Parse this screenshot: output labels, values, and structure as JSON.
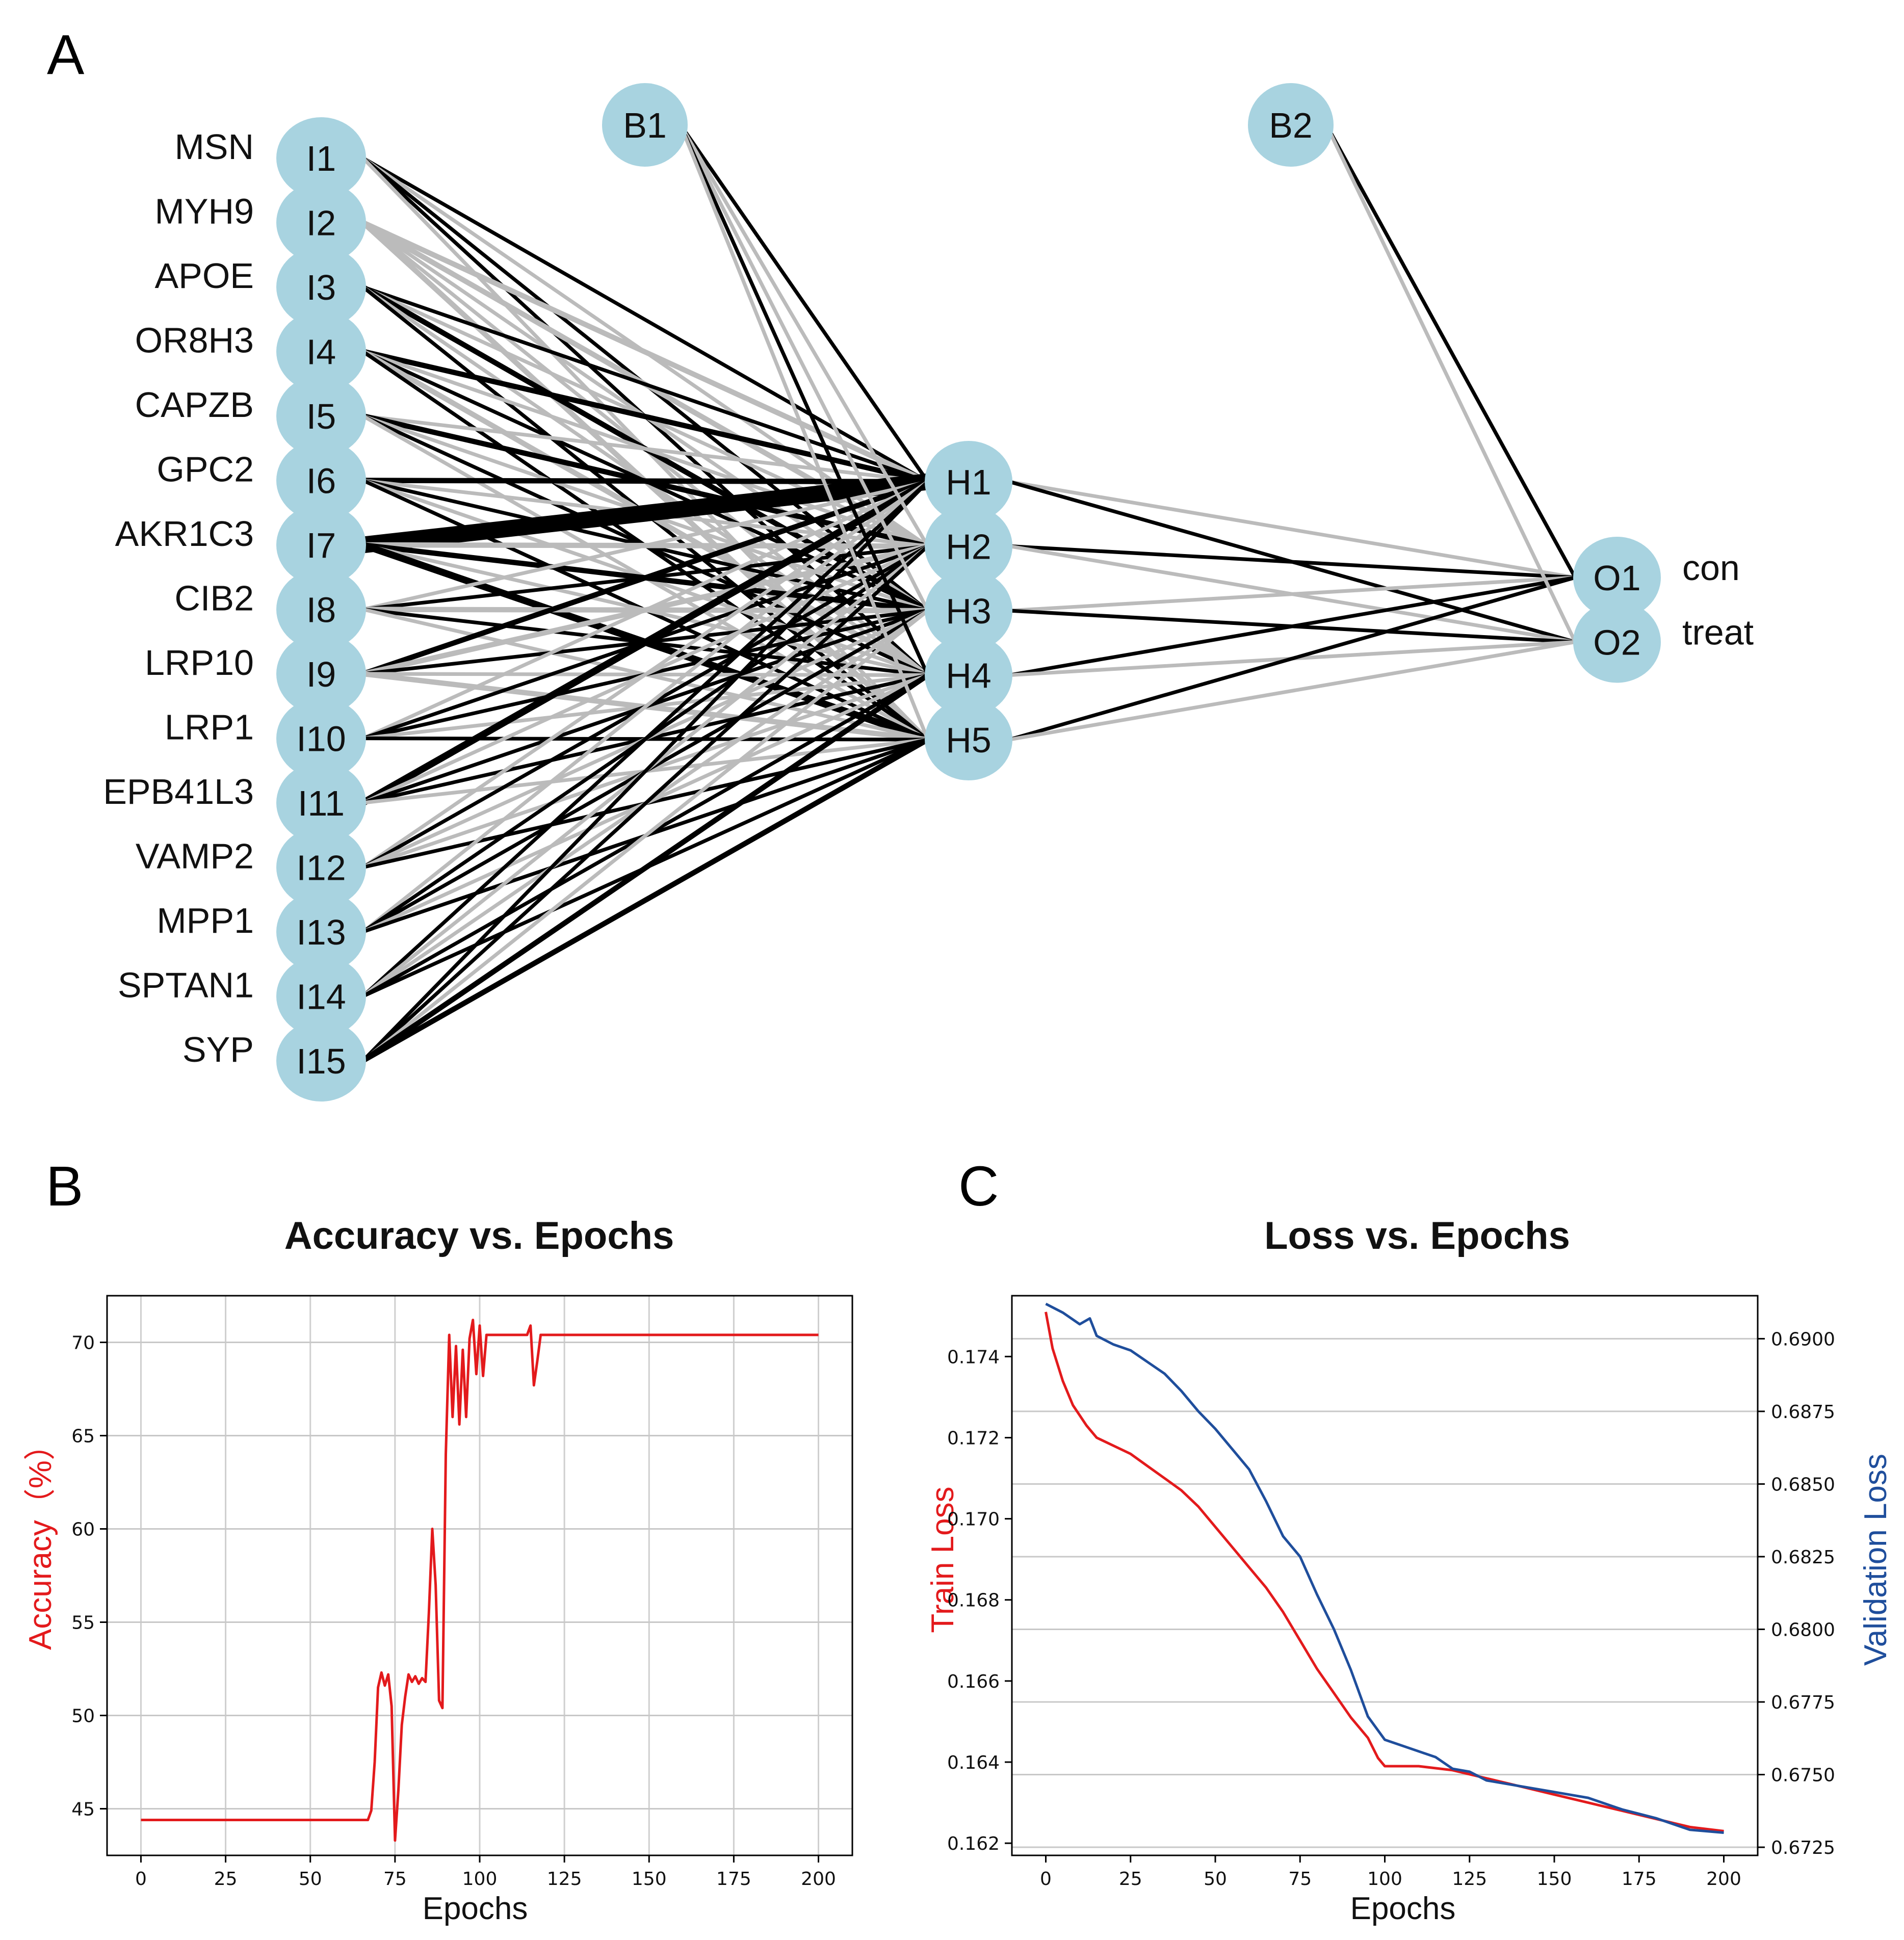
{
  "panels": {
    "a": "A",
    "b": "B",
    "c": "C"
  },
  "network": {
    "input_nodes": [
      "I1",
      "I2",
      "I3",
      "I4",
      "I5",
      "I6",
      "I7",
      "I8",
      "I9",
      "I10",
      "I11",
      "I12",
      "I13",
      "I14",
      "I15"
    ],
    "genes": [
      "MSN",
      "MYH9",
      "APOE",
      "OR8H3",
      "CAPZB",
      "GPC2",
      "AKR1C3",
      "CIB2",
      "LRP10",
      "LRP1",
      "EPB41L3",
      "VAMP2",
      "MPP1",
      "SPTAN1",
      "SYP"
    ],
    "hidden_nodes": [
      "H1",
      "H2",
      "H3",
      "H4",
      "H5"
    ],
    "bias_nodes": [
      "B1",
      "B2"
    ],
    "output_nodes": [
      "O1",
      "O2"
    ],
    "output_labels": [
      "con",
      "treat"
    ],
    "colors": {
      "node": "#a8d3e0",
      "positive_edge": "#000000",
      "negative_edge": "#bbbbbb"
    },
    "hidden_output_weights": [
      {
        "from": "H1",
        "to": "O1",
        "sign": "negative",
        "w": 1
      },
      {
        "from": "H1",
        "to": "O2",
        "sign": "positive",
        "w": 1
      },
      {
        "from": "H2",
        "to": "O1",
        "sign": "positive",
        "w": 1
      },
      {
        "from": "H2",
        "to": "O2",
        "sign": "negative",
        "w": 1
      },
      {
        "from": "H3",
        "to": "O1",
        "sign": "negative",
        "w": 1
      },
      {
        "from": "H3",
        "to": "O2",
        "sign": "positive",
        "w": 1
      },
      {
        "from": "H4",
        "to": "O1",
        "sign": "positive",
        "w": 1
      },
      {
        "from": "H4",
        "to": "O2",
        "sign": "negative",
        "w": 1
      },
      {
        "from": "H5",
        "to": "O1",
        "sign": "positive",
        "w": 1
      },
      {
        "from": "H5",
        "to": "O2",
        "sign": "negative",
        "w": 1
      },
      {
        "from": "B2",
        "to": "O1",
        "sign": "positive",
        "w": 1
      },
      {
        "from": "B2",
        "to": "O2",
        "sign": "negative",
        "w": 1
      }
    ],
    "bias_hidden_weights": [
      {
        "from": "B1",
        "to": "H1",
        "sign": "positive",
        "w": 1
      },
      {
        "from": "B1",
        "to": "H2",
        "sign": "negative",
        "w": 1
      },
      {
        "from": "B1",
        "to": "H3",
        "sign": "negative",
        "w": 1
      },
      {
        "from": "B1",
        "to": "H4",
        "sign": "positive",
        "w": 1
      },
      {
        "from": "B1",
        "to": "H5",
        "sign": "negative",
        "w": 1
      }
    ],
    "input_hidden_weights": [
      [
        "+1",
        "-1",
        "+1",
        "+1",
        "-1"
      ],
      [
        "-2",
        "-2",
        "-1",
        "-1",
        "-2"
      ],
      [
        "+1",
        "-1",
        "+2",
        "-1",
        "+1"
      ],
      [
        "+2",
        "-1",
        "+1",
        "-2",
        "+1"
      ],
      [
        "-1",
        "+2",
        "-1",
        "+1",
        "-1"
      ],
      [
        "+2",
        "-1",
        "+1",
        "-1",
        "+1"
      ],
      [
        "+9",
        "-2",
        "+2",
        "-1",
        "+3"
      ],
      [
        "-1",
        "+1",
        "-2",
        "+1",
        "-1"
      ],
      [
        "+2",
        "-2",
        "+1",
        "-1",
        "-2"
      ],
      [
        "-1",
        "+1",
        "+1",
        "-1",
        "+1"
      ],
      [
        "+3",
        "-1",
        "+1",
        "+1",
        "-1"
      ],
      [
        "-1",
        "+1",
        "-1",
        "-1",
        "+1"
      ],
      [
        "-1",
        "+1",
        "+1",
        "-1",
        "+1"
      ],
      [
        "+1",
        "-1",
        "-1",
        "+1",
        "+1"
      ],
      [
        "+1",
        "+1",
        "-1",
        "+2",
        "+2"
      ]
    ]
  },
  "chart_data": [
    {
      "type": "line",
      "title": "Accuracy vs. Epochs",
      "xlabel": "Epochs",
      "ylabel": "Accuracy（%）",
      "xlim": [
        -10,
        210
      ],
      "ylim": [
        42.5,
        72.5
      ],
      "xticks": [
        0,
        25,
        50,
        75,
        100,
        125,
        150,
        175,
        200
      ],
      "yticks": [
        45,
        50,
        55,
        60,
        65,
        70
      ],
      "grid": true,
      "series": [
        {
          "name": "Accuracy",
          "color": "#e31a1c",
          "points": [
            [
              0,
              44.4
            ],
            [
              67,
              44.4
            ],
            [
              68,
              44.9
            ],
            [
              69,
              47.5
            ],
            [
              70,
              51.5
            ],
            [
              71,
              52.3
            ],
            [
              72,
              51.6
            ],
            [
              73,
              52.2
            ],
            [
              74,
              50.5
            ],
            [
              75,
              43.3
            ],
            [
              76,
              46.0
            ],
            [
              77,
              49.5
            ],
            [
              78,
              51.0
            ],
            [
              79,
              52.2
            ],
            [
              80,
              51.8
            ],
            [
              81,
              52.1
            ],
            [
              82,
              51.7
            ],
            [
              83,
              52.0
            ],
            [
              84,
              51.8
            ],
            [
              85,
              55.5
            ],
            [
              86,
              60.0
            ],
            [
              87,
              57.0
            ],
            [
              88,
              50.8
            ],
            [
              89,
              50.4
            ],
            [
              90,
              64.0
            ],
            [
              91,
              70.4
            ],
            [
              92,
              66.0
            ],
            [
              93,
              69.8
            ],
            [
              94,
              65.6
            ],
            [
              95,
              69.6
            ],
            [
              96,
              66.0
            ],
            [
              97,
              70.2
            ],
            [
              98,
              71.2
            ],
            [
              99,
              68.3
            ],
            [
              100,
              70.9
            ],
            [
              101,
              68.2
            ],
            [
              102,
              70.4
            ],
            [
              114,
              70.4
            ],
            [
              115,
              70.9
            ],
            [
              116,
              67.7
            ],
            [
              117,
              69.0
            ],
            [
              118,
              70.4
            ],
            [
              200,
              70.4
            ]
          ]
        }
      ]
    },
    {
      "type": "line",
      "title": "Loss vs. Epochs",
      "xlabel": "Epochs",
      "ylabel": "Train  Loss",
      "ylabel_right": "Validation  Loss",
      "xlim": [
        -10,
        210
      ],
      "ylim": [
        0.1617,
        0.1755
      ],
      "ylim_right": [
        0.67222,
        0.69148
      ],
      "xticks": [
        0,
        25,
        50,
        75,
        100,
        125,
        150,
        175,
        200
      ],
      "yticks": [
        0.162,
        0.164,
        0.166,
        0.168,
        0.17,
        0.172,
        0.174
      ],
      "yticks_right": [
        0.6725,
        0.675,
        0.6775,
        0.68,
        0.6825,
        0.685,
        0.6875,
        0.69
      ],
      "ytick_labels": [
        "0.162",
        "0.164",
        "0.166",
        "0.168",
        "0.170",
        "0.172",
        "0.174"
      ],
      "ytick_labels_right": [
        "0.6725",
        "0.6750",
        "0.6775",
        "0.6800",
        "0.6825",
        "0.6850",
        "0.6875",
        "0.6900"
      ],
      "grid": true,
      "series": [
        {
          "name": "Train Loss",
          "axis": "left",
          "color": "#e31a1c",
          "points": [
            [
              0,
              0.1751
            ],
            [
              2,
              0.1742
            ],
            [
              5,
              0.1734
            ],
            [
              8,
              0.1728
            ],
            [
              12,
              0.1723
            ],
            [
              15,
              0.172
            ],
            [
              20,
              0.1718
            ],
            [
              25,
              0.1716
            ],
            [
              30,
              0.1713
            ],
            [
              35,
              0.171
            ],
            [
              40,
              0.1707
            ],
            [
              45,
              0.1703
            ],
            [
              50,
              0.1698
            ],
            [
              55,
              0.1693
            ],
            [
              60,
              0.1688
            ],
            [
              65,
              0.1683
            ],
            [
              70,
              0.1677
            ],
            [
              75,
              0.167
            ],
            [
              80,
              0.1663
            ],
            [
              85,
              0.1657
            ],
            [
              90,
              0.1651
            ],
            [
              95,
              0.1646
            ],
            [
              98,
              0.1641
            ],
            [
              100,
              0.1639
            ],
            [
              110,
              0.1639
            ],
            [
              120,
              0.1638
            ],
            [
              130,
              0.1636
            ],
            [
              140,
              0.1634
            ],
            [
              150,
              0.1632
            ],
            [
              160,
              0.163
            ],
            [
              170,
              0.1628
            ],
            [
              180,
              0.1626
            ],
            [
              190,
              0.1624
            ],
            [
              200,
              0.1623
            ]
          ]
        },
        {
          "name": "Validation Loss",
          "axis": "right",
          "color": "#1f4e9c",
          "points": [
            [
              0,
              0.6912
            ],
            [
              5,
              0.6909
            ],
            [
              10,
              0.6905
            ],
            [
              13,
              0.6907
            ],
            [
              15,
              0.6901
            ],
            [
              20,
              0.6898
            ],
            [
              25,
              0.6896
            ],
            [
              30,
              0.6892
            ],
            [
              35,
              0.6888
            ],
            [
              40,
              0.6882
            ],
            [
              45,
              0.6875
            ],
            [
              50,
              0.6869
            ],
            [
              55,
              0.6862
            ],
            [
              60,
              0.6855
            ],
            [
              65,
              0.6844
            ],
            [
              70,
              0.6832
            ],
            [
              75,
              0.6825
            ],
            [
              80,
              0.6812
            ],
            [
              85,
              0.68
            ],
            [
              90,
              0.6786
            ],
            [
              95,
              0.677
            ],
            [
              100,
              0.6762
            ],
            [
              105,
              0.676
            ],
            [
              110,
              0.6758
            ],
            [
              115,
              0.6756
            ],
            [
              120,
              0.6752
            ],
            [
              125,
              0.6751
            ],
            [
              130,
              0.6748
            ],
            [
              140,
              0.6746
            ],
            [
              150,
              0.6744
            ],
            [
              160,
              0.6742
            ],
            [
              170,
              0.6738
            ],
            [
              180,
              0.6735
            ],
            [
              190,
              0.6731
            ],
            [
              200,
              0.673
            ]
          ]
        }
      ]
    }
  ]
}
